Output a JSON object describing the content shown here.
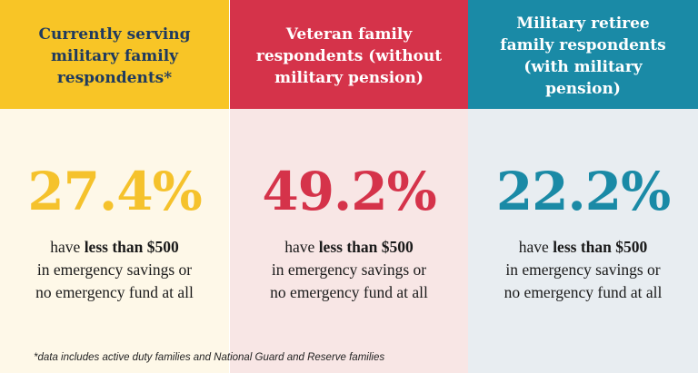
{
  "colors": {
    "yellow": "#f8c526",
    "red": "#d5334a",
    "teal": "#1a8aa6",
    "navy_text": "#1f3a5f"
  },
  "columns": [
    {
      "header_lines": [
        "Currently serving",
        "military family",
        "respondents*"
      ],
      "percent": "27.4%",
      "desc_prefix": "have ",
      "desc_bold": "less than $500",
      "desc_line2": "in emergency savings or",
      "desc_line3": "no emergency fund at all"
    },
    {
      "header_lines": [
        "Veteran family",
        "respondents (without",
        "military pension)"
      ],
      "percent": "49.2%",
      "desc_prefix": "have ",
      "desc_bold": "less than $500",
      "desc_line2": "in emergency savings or",
      "desc_line3": "no emergency fund at all"
    },
    {
      "header_lines": [
        "Military retiree",
        "family respondents",
        "(with military pension)"
      ],
      "percent": "22.2%",
      "desc_prefix": "have ",
      "desc_bold": "less than $500",
      "desc_line2": "in emergency savings or",
      "desc_line3": "no emergency fund at all"
    }
  ],
  "footnote": "*data includes active duty families and National Guard and Reserve families"
}
